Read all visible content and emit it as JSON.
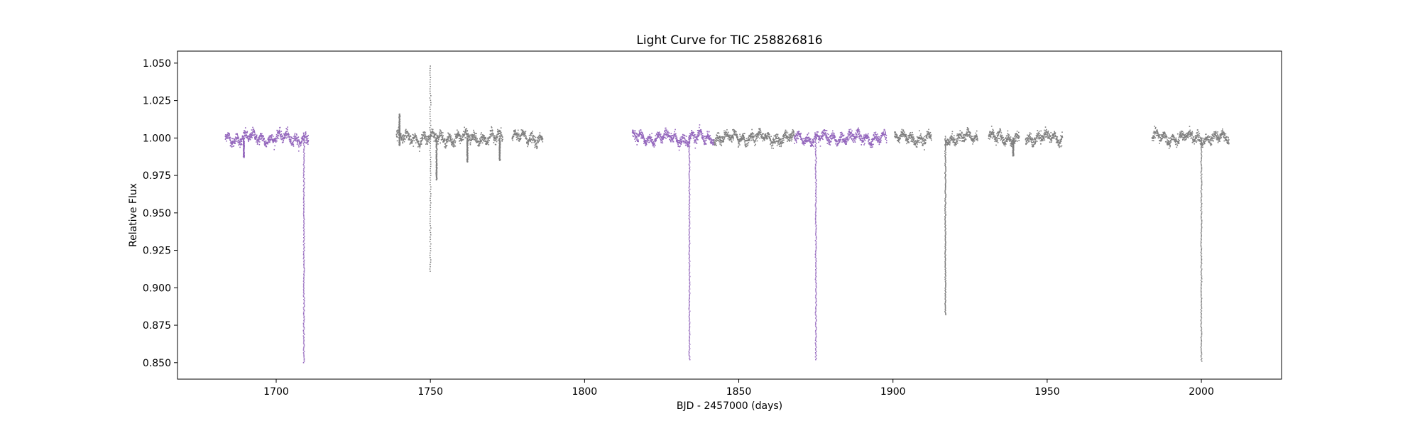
{
  "chart_data": {
    "type": "scatter",
    "title": "Light Curve for TIC 258826816",
    "xlabel": "BJD - 2457000 (days)",
    "ylabel": "Relative Flux",
    "xlim": [
      1668,
      2026
    ],
    "ylim": [
      0.839,
      1.058
    ],
    "xticks": [
      1700,
      1750,
      1800,
      1850,
      1900,
      1950,
      2000
    ],
    "yticks": [
      0.85,
      0.875,
      0.9,
      0.925,
      0.95,
      0.975,
      1.0,
      1.025,
      1.05
    ],
    "xtick_labels": [
      "1700",
      "1750",
      "1800",
      "1850",
      "1900",
      "1950",
      "2000"
    ],
    "ytick_labels": [
      "0.850",
      "0.875",
      "0.900",
      "0.925",
      "0.950",
      "0.975",
      "1.000",
      "1.025",
      "1.050"
    ],
    "grid": false,
    "colors": {
      "purple": "#9467bd",
      "gray": "#7f7f7f"
    },
    "series": [
      {
        "color": "purple",
        "segments": [
          [
            1683.5,
            1710.5
          ],
          [
            1815.5,
            1842
          ],
          [
            1868,
            1898
          ]
        ],
        "baseline": 1.0,
        "scatter": 0.0035
      },
      {
        "color": "gray",
        "segments": [
          [
            1739,
            1773.5
          ],
          [
            1776.5,
            1786.5
          ],
          [
            1842,
            1868
          ],
          [
            1900.5,
            1912.5
          ],
          [
            1917,
            1927.5
          ],
          [
            1931,
            1941
          ],
          [
            1943,
            1955
          ],
          [
            1984,
            2009
          ]
        ],
        "baseline": 1.0,
        "scatter": 0.0035
      }
    ],
    "transits": [
      {
        "x": 1709,
        "depth_to": 0.85,
        "color": "purple"
      },
      {
        "x": 1834,
        "depth_to": 0.852,
        "color": "purple"
      },
      {
        "x": 1875,
        "depth_to": 0.852,
        "color": "purple"
      },
      {
        "x": 1917,
        "depth_to": 0.882,
        "color": "gray"
      },
      {
        "x": 2000,
        "depth_to": 0.851,
        "color": "gray"
      }
    ],
    "features": [
      {
        "x": 1750,
        "high": 1.048,
        "low": 0.911,
        "color": "gray"
      },
      {
        "x": 1752,
        "high": 1.0,
        "low": 0.972,
        "color": "gray"
      },
      {
        "x": 1689.5,
        "high": 1.0,
        "low": 0.987,
        "color": "purple"
      },
      {
        "x": 1740,
        "high": 1.016,
        "low": 0.995,
        "color": "gray"
      },
      {
        "x": 1762,
        "high": 1.0,
        "low": 0.984,
        "color": "gray"
      },
      {
        "x": 1772.5,
        "high": 1.0,
        "low": 0.985,
        "color": "gray"
      },
      {
        "x": 1939,
        "high": 1.0,
        "low": 0.988,
        "color": "gray"
      }
    ]
  }
}
